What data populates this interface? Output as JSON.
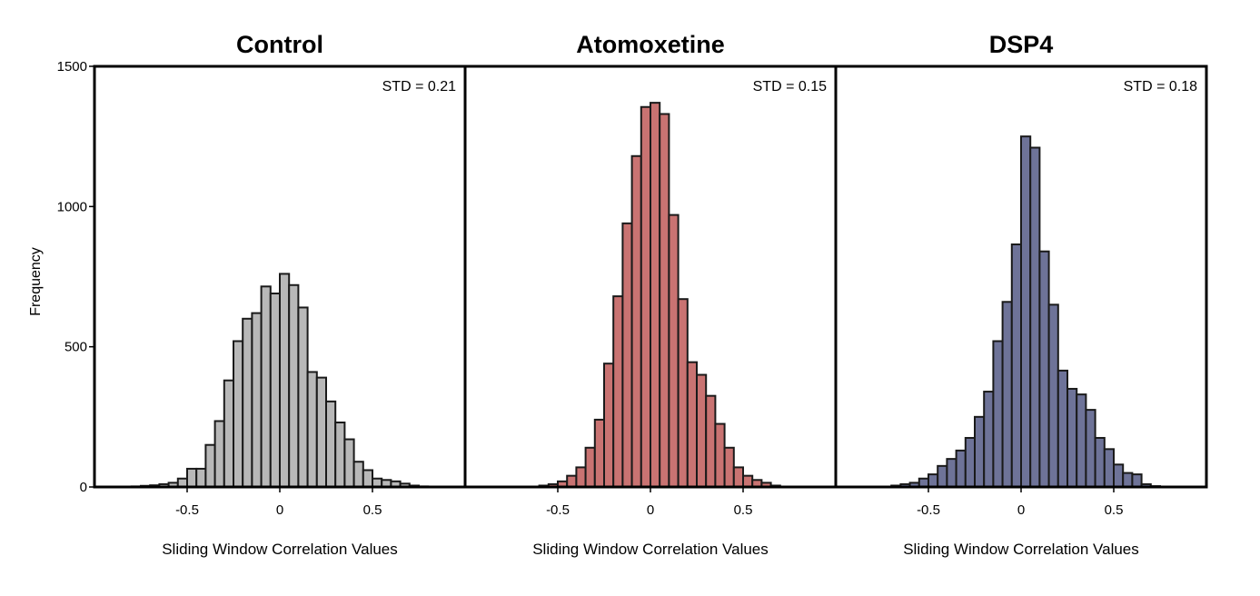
{
  "figure": {
    "ylabel": "Frequency",
    "yticks": [
      0,
      500,
      1000,
      1500
    ]
  },
  "chart_data": [
    {
      "type": "bar",
      "title": "Control",
      "annotation": "STD = 0.21",
      "xlabel": "Sliding Window Correlation Values",
      "ylabel": "Frequency",
      "xlim": [
        -1.0,
        1.0
      ],
      "ylim": [
        0,
        1500
      ],
      "xticks": [
        -0.5,
        0,
        0.5
      ],
      "xtick_labels": [
        "-0.5",
        "0",
        "0.5"
      ],
      "bin_width": 0.05,
      "color": "#b8b8b8",
      "bin_centers": [
        -0.775,
        -0.725,
        -0.675,
        -0.625,
        -0.575,
        -0.525,
        -0.475,
        -0.425,
        -0.375,
        -0.325,
        -0.275,
        -0.225,
        -0.175,
        -0.125,
        -0.075,
        -0.025,
        0.025,
        0.075,
        0.125,
        0.175,
        0.225,
        0.275,
        0.325,
        0.375,
        0.425,
        0.475,
        0.525,
        0.575,
        0.625,
        0.675,
        0.725,
        0.775
      ],
      "values": [
        2,
        4,
        6,
        10,
        15,
        30,
        65,
        65,
        150,
        235,
        380,
        520,
        600,
        620,
        715,
        690,
        760,
        720,
        640,
        410,
        390,
        305,
        230,
        170,
        90,
        60,
        30,
        25,
        20,
        12,
        5,
        2
      ]
    },
    {
      "type": "bar",
      "title": "Atomoxetine",
      "annotation": "STD = 0.15",
      "xlabel": "Sliding Window Correlation Values",
      "ylabel": "Frequency",
      "xlim": [
        -1.0,
        1.0
      ],
      "ylim": [
        0,
        1500
      ],
      "xticks": [
        -0.5,
        0,
        0.5
      ],
      "xtick_labels": [
        "-0.5",
        "0",
        "0.5"
      ],
      "bin_width": 0.05,
      "color": "#c97372",
      "bin_centers": [
        -0.575,
        -0.525,
        -0.475,
        -0.425,
        -0.375,
        -0.325,
        -0.275,
        -0.225,
        -0.175,
        -0.125,
        -0.075,
        -0.025,
        0.025,
        0.075,
        0.125,
        0.175,
        0.225,
        0.275,
        0.325,
        0.375,
        0.425,
        0.475,
        0.525,
        0.575,
        0.625,
        0.675
      ],
      "values": [
        5,
        10,
        20,
        40,
        70,
        140,
        240,
        440,
        680,
        940,
        1180,
        1355,
        1370,
        1330,
        970,
        670,
        445,
        400,
        325,
        225,
        140,
        70,
        40,
        25,
        15,
        5
      ]
    },
    {
      "type": "bar",
      "title": "DSP4",
      "annotation": "STD = 0.18",
      "xlabel": "Sliding Window Correlation Values",
      "ylabel": "Frequency",
      "xlim": [
        -1.0,
        1.0
      ],
      "ylim": [
        0,
        1500
      ],
      "xticks": [
        -0.5,
        0,
        0.5
      ],
      "xtick_labels": [
        "-0.5",
        "0",
        "0.5"
      ],
      "bin_width": 0.05,
      "color": "#6e7398",
      "bin_centers": [
        -0.675,
        -0.625,
        -0.575,
        -0.525,
        -0.475,
        -0.425,
        -0.375,
        -0.325,
        -0.275,
        -0.225,
        -0.175,
        -0.125,
        -0.075,
        -0.025,
        0.025,
        0.075,
        0.125,
        0.175,
        0.225,
        0.275,
        0.325,
        0.375,
        0.425,
        0.475,
        0.525,
        0.575,
        0.625,
        0.675,
        0.725
      ],
      "values": [
        5,
        10,
        15,
        30,
        45,
        75,
        100,
        130,
        175,
        250,
        340,
        520,
        660,
        865,
        1250,
        1210,
        840,
        650,
        415,
        350,
        330,
        275,
        175,
        135,
        80,
        50,
        45,
        10,
        3
      ]
    }
  ]
}
